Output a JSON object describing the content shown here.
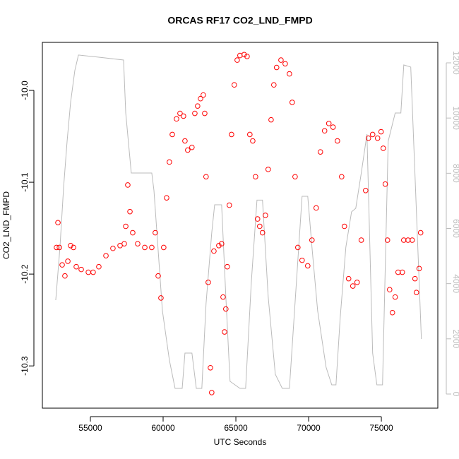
{
  "chart_data": {
    "type": "scatter",
    "title": "ORCAS RF17 CO2_LND_FMPD",
    "xlabel": "UTC Seconds",
    "ylabel": "CO2_LND_FMPD",
    "xlim": [
      51700,
      78880
    ],
    "xticks": [
      55000,
      60000,
      65000,
      70000,
      75000
    ],
    "ylim": [
      -10.346,
      -9.9477
    ],
    "yticks": [
      {
        "value": -10,
        "label": "-10.0"
      },
      -10.1,
      -10.2,
      -10.3
    ],
    "y2lim": [
      -512,
      12742
    ],
    "y2ticks": [
      0,
      2000,
      4000,
      6000,
      8000,
      10000,
      12000
    ],
    "series": [
      {
        "color": "#ff0000",
        "marker": "open-circle",
        "x": [
          52670,
          52770,
          52870,
          53060,
          53250,
          53450,
          53640,
          53840,
          54030,
          54370,
          54860,
          55190,
          55580,
          56070,
          56550,
          57040,
          57330,
          57430,
          57570,
          57720,
          57910,
          58250,
          58740,
          59220,
          59460,
          59660,
          59850,
          60040,
          60240,
          60430,
          60630,
          60920,
          61160,
          61400,
          61500,
          61690,
          61980,
          62180,
          62370,
          62570,
          62760,
          62860,
          62950,
          63100,
          63250,
          63340,
          63490,
          63830,
          64020,
          64120,
          64220,
          64310,
          64410,
          64550,
          64700,
          64890,
          65090,
          65280,
          65570,
          65770,
          65960,
          66160,
          66350,
          66490,
          66640,
          66830,
          67030,
          67220,
          67420,
          67610,
          67800,
          68100,
          68390,
          68680,
          68870,
          69070,
          69260,
          69550,
          69940,
          70230,
          70520,
          70810,
          71100,
          71390,
          71680,
          71980,
          72270,
          72460,
          72750,
          73040,
          73330,
          73620,
          73920,
          74110,
          74400,
          74740,
          74980,
          75130,
          75270,
          75420,
          75570,
          75760,
          75950,
          76150,
          76440,
          76540,
          76830,
          77120,
          77310,
          77410,
          77600,
          77700
        ],
        "values": [
          -10.171,
          -10.144,
          -10.171,
          -10.19,
          -10.202,
          -10.186,
          -10.169,
          -10.171,
          -10.192,
          -10.195,
          -10.198,
          -10.198,
          -10.192,
          -10.18,
          -10.172,
          -10.169,
          -10.167,
          -10.148,
          -10.103,
          -10.132,
          -10.155,
          -10.167,
          -10.171,
          -10.171,
          -10.155,
          -10.202,
          -10.226,
          -10.171,
          -10.117,
          -10.078,
          -10.048,
          -10.031,
          -10.025,
          -10.028,
          -10.055,
          -10.065,
          -10.062,
          -10.025,
          -10.017,
          -10.009,
          -10.005,
          -10.025,
          -10.094,
          -10.209,
          -10.302,
          -10.329,
          -10.175,
          -10.169,
          -10.167,
          -10.225,
          -10.263,
          -10.238,
          -10.192,
          -10.125,
          -10.048,
          -9.994,
          -9.967,
          -9.962,
          -9.961,
          -9.963,
          -10.048,
          -10.055,
          -10.094,
          -10.14,
          -10.148,
          -10.155,
          -10.136,
          -10.086,
          -10.032,
          -9.994,
          -9.975,
          -9.967,
          -9.971,
          -9.982,
          -10.013,
          -10.094,
          -10.171,
          -10.185,
          -10.191,
          -10.163,
          -10.128,
          -10.067,
          -10.044,
          -10.036,
          -10.04,
          -10.055,
          -10.094,
          -10.148,
          -10.205,
          -10.213,
          -10.209,
          -10.163,
          -10.109,
          -10.052,
          -10.048,
          -10.052,
          -10.045,
          -10.063,
          -10.102,
          -10.163,
          -10.217,
          -10.242,
          -10.225,
          -10.198,
          -10.198,
          -10.163,
          -10.163,
          -10.163,
          -10.205,
          -10.22,
          -10.194,
          -10.155
        ]
      },
      {
        "type": "line",
        "color": "#bbbbbb",
        "axis": "y2",
        "x": [
          52620,
          52910,
          53160,
          53400,
          53640,
          53930,
          54180,
          55100,
          57280,
          57430,
          57810,
          59220,
          59370,
          59950,
          60430,
          60820,
          61310,
          61500,
          61980,
          62280,
          62660,
          62950,
          63340,
          63540,
          64020,
          64310,
          64600,
          65280,
          65670,
          66060,
          66450,
          66830,
          67220,
          67710,
          68190,
          68680,
          69160,
          69550,
          69940,
          70230,
          70620,
          71200,
          71590,
          71880,
          72170,
          72560,
          72950,
          73240,
          73620,
          74010,
          74400,
          74690,
          75080,
          75470,
          75950,
          76340,
          76540,
          77020,
          77410,
          77750
        ],
        "values": [
          3403,
          5322,
          7497,
          9160,
          10568,
          11720,
          12283,
          12232,
          12103,
          10184,
          8009,
          8009,
          7370,
          3019,
          1228,
          205,
          205,
          1484,
          1484,
          205,
          205,
          3275,
          5834,
          6858,
          6858,
          3531,
          461,
          205,
          205,
          4043,
          7028,
          7028,
          3531,
          717,
          205,
          205,
          4043,
          7165,
          7165,
          5322,
          3019,
          972,
          333,
          333,
          2764,
          5322,
          6602,
          6730,
          8009,
          9416,
          1484,
          333,
          333,
          9160,
          10184,
          10184,
          11924,
          11848,
          6602,
          1996
        ]
      }
    ]
  }
}
